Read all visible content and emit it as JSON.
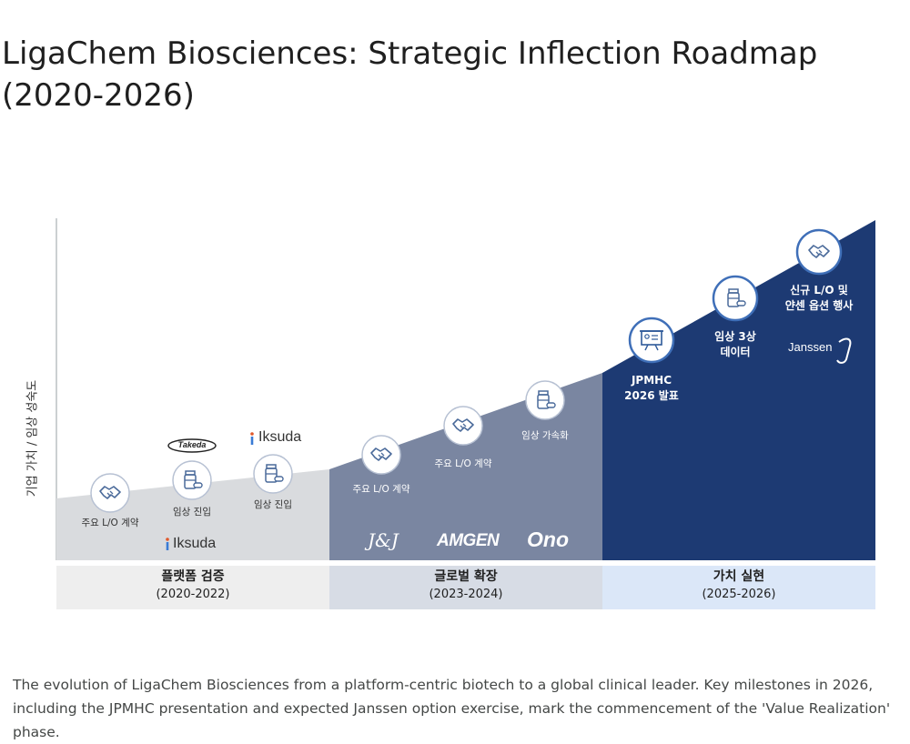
{
  "title": "LigaChem Biosciences: Strategic Inflection Roadmap (2020-2026)",
  "y_axis_label": "기업 가치 / 임상 성숙도",
  "phases": [
    {
      "name": "플랫폼 검증",
      "years": "(2020-2022)",
      "color": "#d9dbde",
      "label_bg": "#eeeeee"
    },
    {
      "name": "글로벌 확장",
      "years": "(2023-2024)",
      "color": "#7a86a1",
      "label_bg": "#d7dce5"
    },
    {
      "name": "가치 실현",
      "years": "(2025-2026)",
      "color": "#1d3a73",
      "label_bg": "#dbe7f8"
    }
  ],
  "milestones": {
    "p1_lo": "주요 L/O 계약",
    "p1_clinical_a": "임상 진입",
    "p1_clinical_b": "임상 진입",
    "p2_lo_a": "주요 L/O 계약",
    "p2_lo_b": "주요 L/O 계약",
    "p2_accel": "임상 가속화",
    "p3_jpmhc_1": "JPMHC",
    "p3_jpmhc_2": "2026 발표",
    "p3_ph3_1": "임상 3상",
    "p3_ph3_2": "데이터",
    "p3_new_1": "신규 L/O 및",
    "p3_new_2": "얀센 옵션 행사"
  },
  "logos": {
    "takeda": "Takeda",
    "iksuda_top": "Iksuda",
    "iksuda_bottom": "Iksuda",
    "jnj": "J&J",
    "amgen": "AMGEN",
    "ono": "Ono",
    "janssen": "Janssen"
  },
  "icons": [
    "handshake-icon",
    "medicine-bottle-icon",
    "presentation-board-icon"
  ],
  "caption": "The evolution of LigaChem Biosciences from a platform-centric biotech to a global clinical leader. Key milestones in 2026, including the JPMHC presentation and expected Janssen option exercise, mark the commencement of the 'Value Realization' phase."
}
